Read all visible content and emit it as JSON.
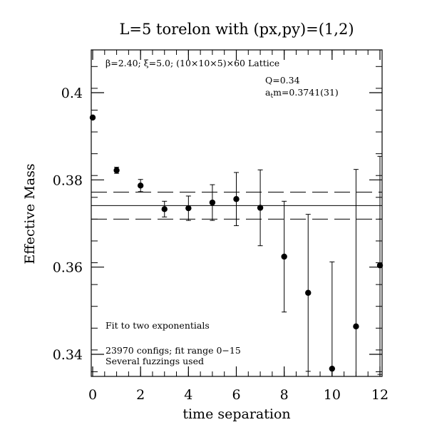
{
  "chart_data": {
    "type": "scatter",
    "title": "L=5 torelon with (px,py)=(1,2)",
    "xlabel": "time separation",
    "ylabel": "Effective Mass",
    "xlim": [
      0,
      12
    ],
    "ylim": [
      0.335,
      0.41
    ],
    "x_ticks": [
      0,
      2,
      4,
      6,
      8,
      10,
      12
    ],
    "x_tick_labels": [
      "0",
      "2",
      "4",
      "6",
      "8",
      "10",
      "12"
    ],
    "y_ticks": [
      0.34,
      0.36,
      0.38,
      0.4
    ],
    "y_tick_labels": [
      "0.34",
      "0.36",
      "0.38",
      "0.4"
    ],
    "grid": false,
    "series": [
      {
        "points": [
          {
            "x": 0,
            "y": 0.3943,
            "err": 0.0002
          },
          {
            "x": 1,
            "y": 0.3822,
            "err": 0.0007
          },
          {
            "x": 2,
            "y": 0.3787,
            "err": 0.0014
          },
          {
            "x": 3,
            "y": 0.3733,
            "err": 0.0018
          },
          {
            "x": 4,
            "y": 0.3735,
            "err": 0.0028
          },
          {
            "x": 5,
            "y": 0.3748,
            "err": 0.0041
          },
          {
            "x": 6,
            "y": 0.3756,
            "err": 0.0061
          },
          {
            "x": 7,
            "y": 0.3736,
            "err": 0.0087
          },
          {
            "x": 8,
            "y": 0.3624,
            "err": 0.0127
          },
          {
            "x": 9,
            "y": 0.3541,
            "err": 0.018
          },
          {
            "x": 10,
            "y": 0.3367,
            "err": 0.0245
          },
          {
            "x": 11,
            "y": 0.3464,
            "err": 0.036
          },
          {
            "x": 12,
            "y": 0.3604,
            "err": 0.025
          }
        ]
      }
    ],
    "fit_line": {
      "value": 0.3741,
      "error": 0.0031
    },
    "annotations": {
      "lattice_prefix": "β=2.40; ξ=5.0; (10×10×5)×60 Lattice",
      "q_value": "Q=0.34",
      "mass_prefix": "a",
      "mass_subscript": "t",
      "mass_suffix": "m=0.3741(31)",
      "fit_method": "Fit to two exponentials",
      "configs": "23970 configs; fit range 0−15",
      "fuzzing": "Several fuzzings used"
    }
  }
}
